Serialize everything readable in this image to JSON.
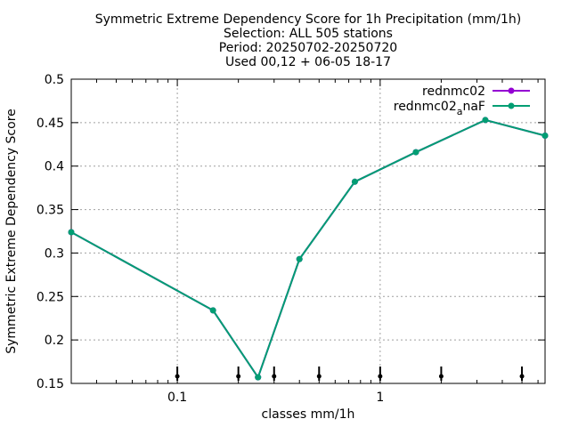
{
  "chart_data": {
    "type": "line",
    "title_lines": [
      "Symmetric Extreme Dependency Score  for 1h Precipitation (mm/1h)",
      "Selection: ALL    505 stations",
      "Period: 20250702-20250720",
      "Used 00,12 + 06-05 18-17"
    ],
    "xlabel": "classes mm/1h",
    "ylabel": "Symmetric Extreme Dependency Score",
    "xscale": "log",
    "xlim": [
      0.03,
      6.5
    ],
    "ylim": [
      0.15,
      0.5
    ],
    "x_ticks": [
      {
        "value": 0.1,
        "label": "0.1"
      },
      {
        "value": 1,
        "label": "1"
      }
    ],
    "y_ticks": [
      {
        "value": 0.15,
        "label": "0.15"
      },
      {
        "value": 0.2,
        "label": "0.2"
      },
      {
        "value": 0.25,
        "label": "0.25"
      },
      {
        "value": 0.3,
        "label": "0.3"
      },
      {
        "value": 0.35,
        "label": "0.35"
      },
      {
        "value": 0.4,
        "label": "0.4"
      },
      {
        "value": 0.45,
        "label": "0.45"
      },
      {
        "value": 0.5,
        "label": "0.5"
      }
    ],
    "grid": true,
    "legend_position": "top-right",
    "class_markers_x": [
      0.1,
      0.2,
      0.3,
      0.5,
      1,
      2,
      5
    ],
    "x": [
      0.03,
      0.15,
      0.25,
      0.4,
      0.75,
      1.5,
      3.3,
      6.5
    ],
    "series": [
      {
        "name": "rednmc02",
        "name_base": "rednmc02",
        "name_sub": "",
        "name_tail": "",
        "color": "#9400d3",
        "values": [
          0.324,
          0.234,
          0.157,
          0.293,
          0.382,
          0.416,
          0.453,
          0.435
        ]
      },
      {
        "name": "rednmc02_anaF",
        "name_base": "rednmc02",
        "name_sub": "a",
        "name_tail": "naF",
        "color": "#009e73",
        "values": [
          0.324,
          0.234,
          0.157,
          0.293,
          0.382,
          0.416,
          0.453,
          0.435
        ]
      }
    ]
  }
}
